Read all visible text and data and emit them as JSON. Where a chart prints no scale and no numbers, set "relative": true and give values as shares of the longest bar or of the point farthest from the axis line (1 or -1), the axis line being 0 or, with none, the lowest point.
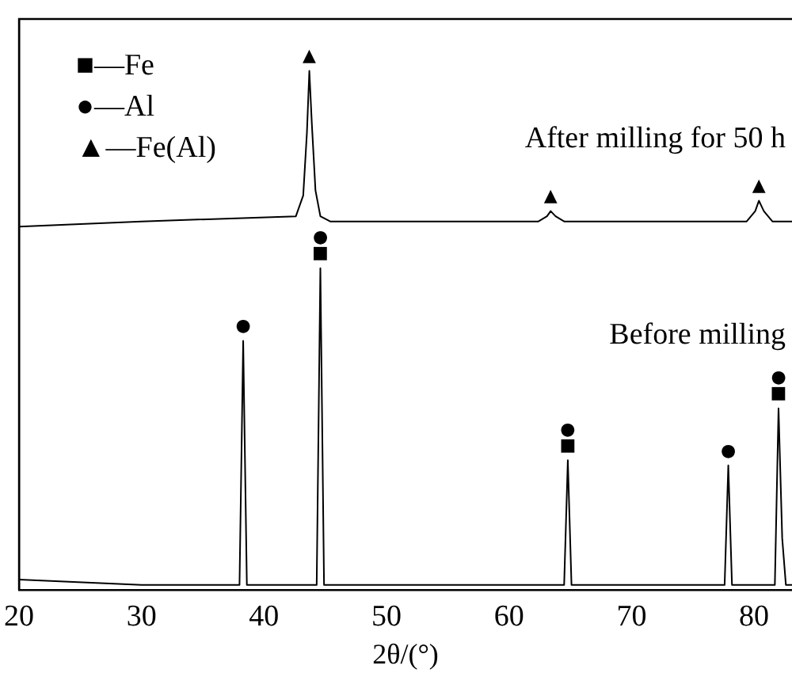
{
  "chart_data": {
    "type": "line",
    "relative": true,
    "xlabel": "2θ/(°)",
    "xlim": [
      20,
      83.1
    ],
    "xticks": [
      20,
      30,
      40,
      50,
      60,
      70,
      80
    ],
    "grid": false,
    "legend": false,
    "marker": "none",
    "line_style": "solid",
    "tick_labels": "x",
    "series": [
      {
        "name": "After milling for 50 h",
        "color": "#000000",
        "x": [
          20,
          30,
          42.6,
          43.2,
          43.5,
          43.7,
          43.9,
          44.2,
          44.6,
          45.4,
          55,
          62.4,
          63.1,
          63.4,
          63.8,
          64.5,
          70,
          79.4,
          80.1,
          80.4,
          80.8,
          81.5,
          83.1
        ],
        "values": [
          0.7,
          0.71,
          0.72,
          0.76,
          0.88,
          1.0,
          0.9,
          0.77,
          0.72,
          0.71,
          0.71,
          0.71,
          0.72,
          0.73,
          0.72,
          0.71,
          0.71,
          0.71,
          0.73,
          0.75,
          0.73,
          0.71,
          0.71
        ]
      },
      {
        "name": "Before milling",
        "color": "#000000",
        "x": [
          20,
          30,
          38.0,
          38.3,
          38.6,
          44.3,
          44.6,
          44.9,
          64.5,
          64.8,
          65.1,
          77.6,
          77.9,
          78.2,
          81.7,
          82.0,
          82.3,
          82.6,
          83.1
        ],
        "values": [
          0.02,
          0.01,
          0.01,
          0.48,
          0.01,
          0.01,
          0.62,
          0.01,
          0.01,
          0.25,
          0.01,
          0.01,
          0.24,
          0.01,
          0.01,
          0.35,
          0.1,
          0.01,
          0.01
        ]
      }
    ],
    "annotations": [
      "■—Fe",
      "●—Al",
      "▲—Fe(Al)",
      {
        "text": "▲",
        "x": 43.7,
        "y": 1.0
      },
      {
        "text": "▲",
        "x": 63.4,
        "y": 0.73
      },
      {
        "text": "▲",
        "x": 80.4,
        "y": 0.75
      },
      {
        "text": "●",
        "x": 38.3,
        "y": 0.48
      },
      {
        "text": "■",
        "x": 44.6,
        "y": 0.62
      },
      {
        "text": "●",
        "x": 44.6,
        "y": 0.62
      },
      {
        "text": "■",
        "x": 64.8,
        "y": 0.25
      },
      {
        "text": "●",
        "x": 64.8,
        "y": 0.25
      },
      {
        "text": "●",
        "x": 77.9,
        "y": 0.24
      },
      {
        "text": "■",
        "x": 82.0,
        "y": 0.35
      },
      {
        "text": "●",
        "x": 82.0,
        "y": 0.35
      }
    ]
  }
}
